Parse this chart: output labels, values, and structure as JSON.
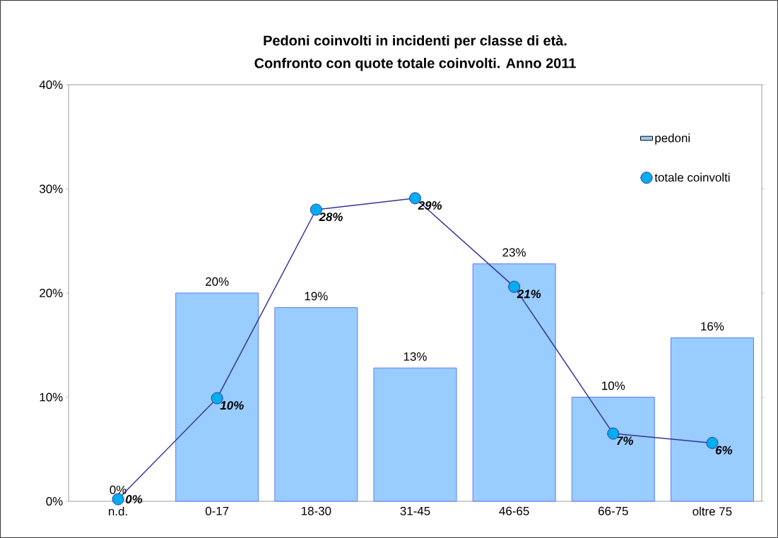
{
  "chart_data": {
    "type": "bar",
    "title": "Pedoni coinvolti in incidenti per classe di età.",
    "subtitle": "Confronto con quote totale coinvolti. Anno 2011",
    "categories": [
      "n.d.",
      "0-17",
      "18-30",
      "31-45",
      "46-65",
      "66-75",
      "oltre 75"
    ],
    "series": [
      {
        "name": "pedoni",
        "color": "#99ccff",
        "values": [
          0,
          20,
          18.6,
          12.8,
          22.8,
          10,
          15.7
        ],
        "value_labels": [
          "0%",
          "20%",
          "19%",
          "13%",
          "23%",
          "10%",
          "16%"
        ]
      },
      {
        "name": "totale coinvolti",
        "type": "line",
        "color": "#333399",
        "marker": "circle",
        "values": [
          0.2,
          9.9,
          28.0,
          29.1,
          20.6,
          6.5,
          5.6
        ],
        "value_labels": [
          "0%",
          "10%",
          "28%",
          "29%",
          "21%",
          "7%",
          "6%"
        ]
      }
    ],
    "ylim": [
      0,
      40
    ],
    "yticks": [
      {
        "value": 0,
        "label": "0%"
      },
      {
        "value": 10,
        "label": "10%"
      },
      {
        "value": 20,
        "label": "20%"
      },
      {
        "value": 30,
        "label": "30%"
      },
      {
        "value": 40,
        "label": "40%"
      }
    ],
    "legend": "top right"
  }
}
